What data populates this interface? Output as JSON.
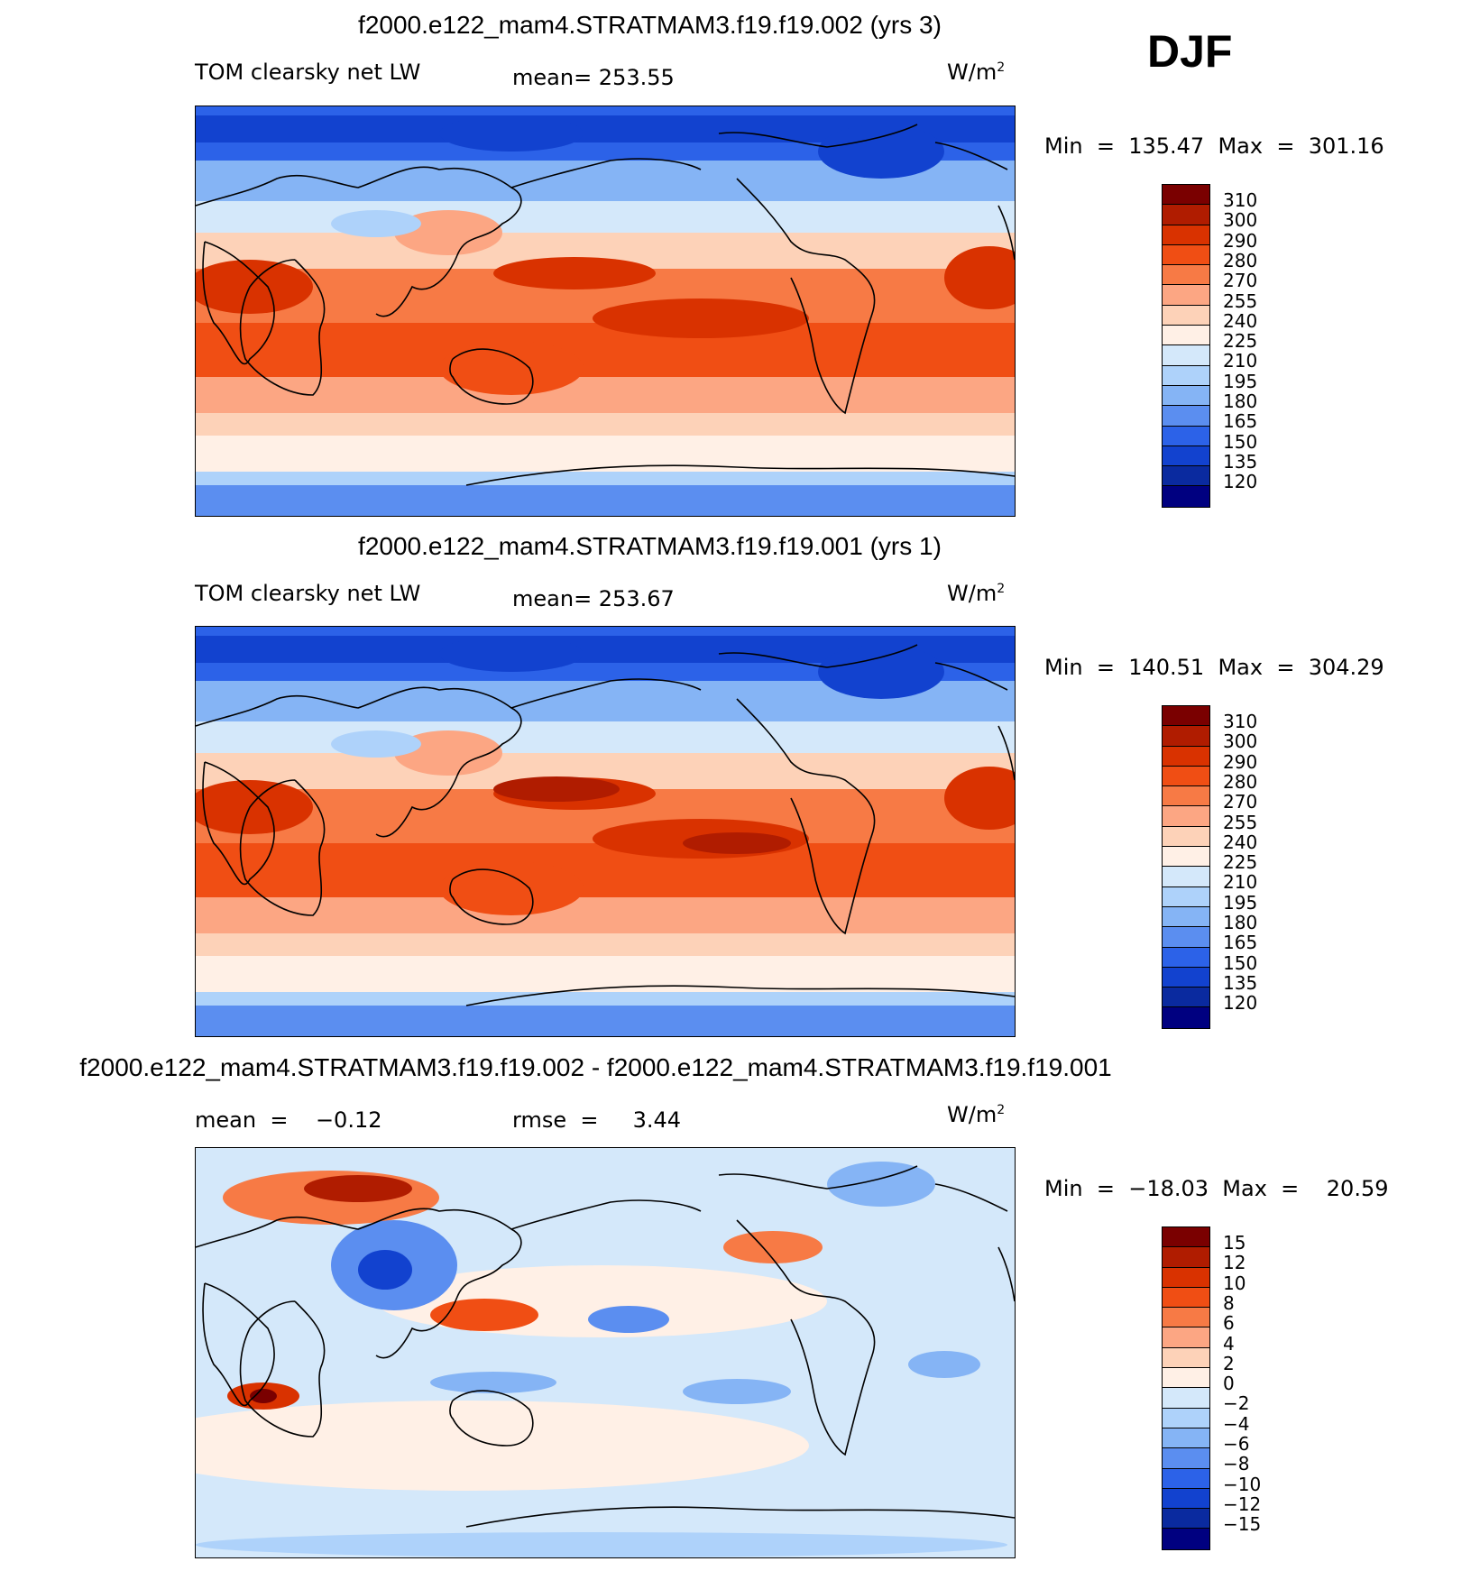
{
  "season": "DJF",
  "panels": [
    {
      "title": "f2000.e122_mam4.STRATMAM3.f19.f19.002 (yrs 3)",
      "left_label": "TOM clearsky net LW",
      "center_label": "mean= 253.55",
      "units_label": "W/m",
      "units_sup": "2",
      "minmax": "Min  =  135.47  Max  =  301.16",
      "type": "abs",
      "levels": [
        "310",
        "300",
        "290",
        "280",
        "270",
        "255",
        "240",
        "225",
        "210",
        "195",
        "180",
        "165",
        "150",
        "135",
        "120"
      ]
    },
    {
      "title": "f2000.e122_mam4.STRATMAM3.f19.f19.001 (yrs 1)",
      "left_label": "TOM clearsky net LW",
      "center_label": "mean= 253.67",
      "units_label": "W/m",
      "units_sup": "2",
      "minmax": "Min  =  140.51  Max  =  304.29",
      "type": "abs",
      "levels": [
        "310",
        "300",
        "290",
        "280",
        "270",
        "255",
        "240",
        "225",
        "210",
        "195",
        "180",
        "165",
        "150",
        "135",
        "120"
      ]
    },
    {
      "title": "f2000.e122_mam4.STRATMAM3.f19.f19.002 - f2000.e122_mam4.STRATMAM3.f19.f19.001",
      "left_label": "mean  =    −0.12",
      "center_label": "rmse  =     3.44",
      "units_label": "W/m",
      "units_sup": "2",
      "minmax": "Min  =  −18.03  Max  =    20.59",
      "type": "diff",
      "levels": [
        "15",
        "12",
        "10",
        "8",
        "6",
        "4",
        "2",
        "0",
        "−2",
        "−4",
        "−6",
        "−8",
        "−10",
        "−12",
        "−15"
      ]
    }
  ],
  "colors": {
    "abs_scale": [
      "#7a0000",
      "#b01c00",
      "#d93200",
      "#f04e14",
      "#f77a45",
      "#fca683",
      "#fdd2b8",
      "#fff0e6",
      "#d4e8fa",
      "#aed2fa",
      "#85b4f5",
      "#5b8ef0",
      "#2c62e8",
      "#1242cf",
      "#0a2a9f",
      "#000080"
    ],
    "diff_scale": [
      "#7a0000",
      "#b01c00",
      "#d93200",
      "#f04e14",
      "#f77a45",
      "#fca683",
      "#fdd2b8",
      "#fff0e6",
      "#d4e8fa",
      "#aed2fa",
      "#85b4f5",
      "#5b8ef0",
      "#2c62e8",
      "#1242cf",
      "#0a2a9f",
      "#000080"
    ]
  }
}
